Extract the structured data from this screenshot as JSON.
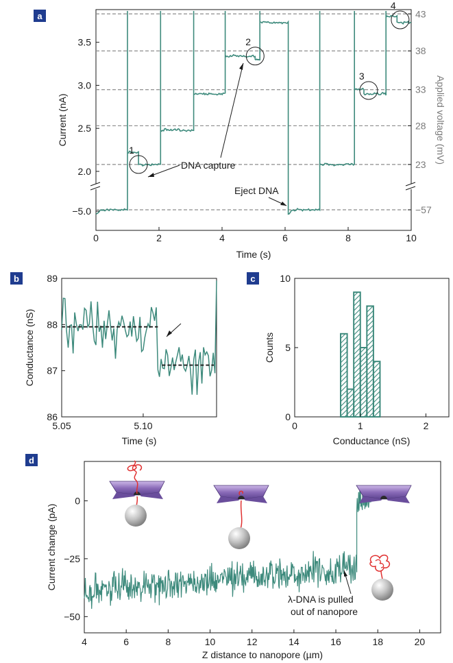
{
  "chart_data": [
    {
      "panel": "a",
      "type": "line",
      "xlabel": "Time (s)",
      "ylabel": "Current (nA)",
      "y2label": "Applied voltage (mV)",
      "x_ticks": [
        "0",
        "2",
        "4",
        "6",
        "8",
        "10"
      ],
      "y_ticks_upper": [
        "2.0",
        "2.5",
        "3.0",
        "3.5"
      ],
      "y_tick_lower": "−5.0",
      "y2_ticks": [
        "23",
        "28",
        "33",
        "38",
        "43",
        "−57"
      ],
      "xlim": [
        0,
        10
      ],
      "ylim_upper": [
        1.88,
        3.88
      ],
      "levels_nA": [
        -4.85,
        2.08,
        2.48,
        2.9,
        3.34,
        3.73
      ],
      "dashed_levels_nA": [
        2.08,
        2.53,
        2.95,
        3.4,
        3.83,
        -4.85
      ],
      "segments": [
        {
          "t0": 0.0,
          "t1": 1.0,
          "level": -4.85
        },
        {
          "t0": 1.0,
          "t1": 1.35,
          "level": 2.22
        },
        {
          "t0": 1.35,
          "t1": 2.05,
          "level": 2.08
        },
        {
          "t0": 2.05,
          "t1": 3.1,
          "level": 2.48
        },
        {
          "t0": 3.1,
          "t1": 4.1,
          "level": 2.9
        },
        {
          "t0": 4.1,
          "t1": 5.05,
          "level": 3.34
        },
        {
          "t0": 5.05,
          "t1": 5.2,
          "level": 3.3
        },
        {
          "t0": 5.2,
          "t1": 6.1,
          "level": 3.73
        },
        {
          "t0": 6.1,
          "t1": 7.1,
          "level": -4.85
        },
        {
          "t0": 7.1,
          "t1": 8.2,
          "level": 2.08
        },
        {
          "t0": 8.2,
          "t1": 8.5,
          "level": 2.95
        },
        {
          "t0": 8.5,
          "t1": 9.2,
          "level": 2.9
        },
        {
          "t0": 9.2,
          "t1": 9.55,
          "level": 3.8
        },
        {
          "t0": 9.55,
          "t1": 10.0,
          "level": 3.73
        }
      ],
      "event_markers": [
        {
          "label": "1",
          "t": 1.35,
          "level": 2.08
        },
        {
          "label": "2",
          "t": 5.05,
          "level": 3.34
        },
        {
          "label": "3",
          "t": 8.65,
          "level": 2.94
        },
        {
          "label": "4",
          "t": 9.65,
          "level": 3.76
        }
      ],
      "annotations": [
        "DNA capture",
        "Eject DNA"
      ]
    },
    {
      "panel": "b",
      "type": "line",
      "xlabel": "Time (s)",
      "ylabel": "Conductance (nS)",
      "x_ticks": [
        "5.05",
        "5.10"
      ],
      "y_ticks": [
        "86",
        "87",
        "88",
        "89"
      ],
      "xlim": [
        5.05,
        5.145
      ],
      "ylim": [
        86,
        89
      ],
      "before_level": 87.95,
      "after_level": 87.12,
      "step_time": 5.109
    },
    {
      "panel": "c",
      "type": "bar",
      "xlabel": "Conductance (nS)",
      "ylabel": "Counts",
      "x_ticks": [
        "0",
        "1",
        "2"
      ],
      "y_ticks": [
        "0",
        "5",
        "10"
      ],
      "xlim": [
        0,
        2.35
      ],
      "ylim": [
        0,
        10
      ],
      "bin_width": 0.1,
      "bin_centers": [
        0.75,
        0.85,
        0.95,
        1.05,
        1.15,
        1.25,
        1.35
      ],
      "values": [
        6,
        2,
        9,
        5,
        8,
        4,
        0
      ]
    },
    {
      "panel": "d",
      "type": "line",
      "xlabel": "Z distance to nanopore (µm)",
      "ylabel": "Current change (pA)",
      "x_ticks": [
        "4",
        "6",
        "8",
        "10",
        "12",
        "14",
        "16",
        "18",
        "20"
      ],
      "y_ticks": [
        "−50",
        "−25",
        "0"
      ],
      "xlim": [
        4,
        21
      ],
      "ylim": [
        -57,
        17
      ],
      "baseline_start": -39,
      "baseline_end": -29,
      "step_x": 17.0,
      "after_level": 0,
      "annotation": [
        "λ-DNA is pulled",
        "out of nanopore"
      ]
    }
  ],
  "panels": {
    "a": "a",
    "b": "b",
    "c": "c",
    "d": "d"
  },
  "colors": {
    "trace": "#3d8a7c",
    "dashed": "#8c8c8c",
    "badge": "#1f3c8f",
    "dna": "#e03030"
  }
}
